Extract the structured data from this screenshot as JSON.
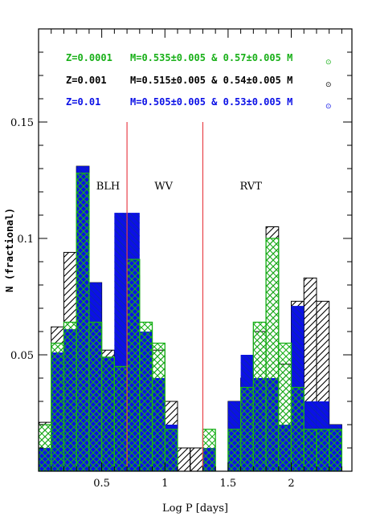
{
  "chart_data": {
    "type": "bar",
    "subtype": "overlaid-histogram",
    "xlabel": "Log P [days]",
    "ylabel": "N (fractional)",
    "xlim": [
      0,
      2.48
    ],
    "ylim": [
      0,
      0.19
    ],
    "x_ticks": [
      0.5,
      1,
      1.5,
      2
    ],
    "x_tick_labels": [
      "0.5",
      "1",
      "1.5",
      "2"
    ],
    "y_ticks": [
      0.05,
      0.1,
      0.15
    ],
    "y_tick_labels": [
      "0.05",
      "0.1",
      "0.15"
    ],
    "bin_edges": [
      0,
      0.1,
      0.2,
      0.3,
      0.4,
      0.5,
      0.6,
      0.7,
      0.8,
      0.9,
      1.0,
      1.1,
      1.2,
      1.3,
      1.4,
      1.5,
      1.6,
      1.7,
      1.8,
      1.9,
      2.0,
      2.1,
      2.2,
      2.3,
      2.4
    ],
    "vertical_lines": [
      {
        "x": 0.7,
        "color": "#e8424a"
      },
      {
        "x": 1.3,
        "color": "#e8424a"
      }
    ],
    "regions": [
      {
        "label": "BLH",
        "x": 0.55,
        "y": 0.121
      },
      {
        "label": "WV",
        "x": 0.99,
        "y": 0.121
      },
      {
        "label": "RVT",
        "x": 1.68,
        "y": 0.121
      }
    ],
    "series": [
      {
        "name": "Z=0.001",
        "legend": {
          "z": "Z=0.001",
          "mass": "M=0.515±0.005 & 0.54±0.005 M",
          "color": "#000000"
        },
        "style": "hatch-diagonal",
        "color": "#000000",
        "values": [
          0.021,
          0.062,
          0.094,
          0.131,
          0.081,
          0.052,
          0.049,
          0.084,
          0.057,
          0.052,
          0.03,
          0.01,
          0.01,
          0,
          0,
          0.03,
          0.04,
          0.06,
          0.105,
          0.046,
          0.073,
          0.083,
          0.073,
          0.02
        ]
      },
      {
        "name": "Z=0.01",
        "legend": {
          "z": "Z=0.01",
          "mass": "M=0.505±0.005 & 0.53±0.005 M",
          "color": "#0b10e6"
        },
        "style": "solid",
        "color": "#0b10e6",
        "values": [
          0.01,
          0.051,
          0.061,
          0.131,
          0.081,
          0.049,
          0.111,
          0.111,
          0.06,
          0.04,
          0.02,
          0,
          0,
          0.01,
          0,
          0.03,
          0.05,
          0.04,
          0.04,
          0.02,
          0.071,
          0.03,
          0.03,
          0.02
        ]
      },
      {
        "name": "Z=0.0001",
        "legend": {
          "z": "Z=0.0001",
          "mass": "M=0.535±0.005 & 0.57±0.005 M",
          "color": "#19b019"
        },
        "style": "hatch-cross",
        "color": "#19b019",
        "values": [
          0.02,
          0.055,
          0.064,
          0.128,
          0.064,
          0.049,
          0.045,
          0.091,
          0.064,
          0.055,
          0.018,
          0,
          0,
          0.018,
          0,
          0.018,
          0.036,
          0.064,
          0.1,
          0.055,
          0.036,
          0.018,
          0.018,
          0.018
        ]
      }
    ]
  }
}
